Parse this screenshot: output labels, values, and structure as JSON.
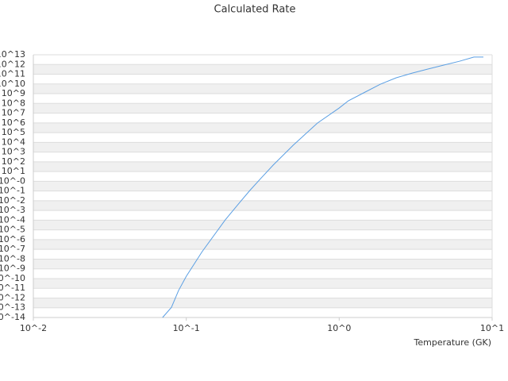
{
  "chart_data": {
    "type": "line",
    "title": "Calculated Rate",
    "x_label": "Temperature (GK)",
    "x_scale": "log",
    "y_scale": "log",
    "grid": true,
    "color": "#5b9fe3",
    "xlim": [
      0.01,
      10
    ],
    "xticks": [
      {
        "value": 0.01,
        "label": "10^-2"
      },
      {
        "value": 0.1,
        "label": "10^-1"
      },
      {
        "value": 1,
        "label": "10^0"
      },
      {
        "value": 10,
        "label": "10^1"
      }
    ],
    "ylim": [
      1e-14,
      10000000000000.0
    ],
    "yticks": [
      {
        "value": 10000000000000.0,
        "label": "10^13"
      },
      {
        "value": 1000000000000.0,
        "label": "10^12"
      },
      {
        "value": 100000000000.0,
        "label": "10^11"
      },
      {
        "value": 10000000000.0,
        "label": "10^10"
      },
      {
        "value": 1000000000.0,
        "label": "10^9"
      },
      {
        "value": 100000000.0,
        "label": "10^8"
      },
      {
        "value": 10000000.0,
        "label": "10^7"
      },
      {
        "value": 1000000.0,
        "label": "10^6"
      },
      {
        "value": 100000.0,
        "label": "10^5"
      },
      {
        "value": 10000.0,
        "label": "10^4"
      },
      {
        "value": 1000.0,
        "label": "10^3"
      },
      {
        "value": 100,
        "label": "10^2"
      },
      {
        "value": 10,
        "label": "10^1"
      },
      {
        "value": 1,
        "label": "10^-0"
      },
      {
        "value": 0.1,
        "label": "10^-1"
      },
      {
        "value": 0.01,
        "label": "10^-2"
      },
      {
        "value": 0.001,
        "label": "10^-3"
      },
      {
        "value": 0.0001,
        "label": "10^-4"
      },
      {
        "value": 1e-05,
        "label": "10^-5"
      },
      {
        "value": 1e-06,
        "label": "10^-6"
      },
      {
        "value": 1e-07,
        "label": "10^-7"
      },
      {
        "value": 1e-08,
        "label": "10^-8"
      },
      {
        "value": 1e-09,
        "label": "10^-9"
      },
      {
        "value": 1e-10,
        "label": "10^-10"
      },
      {
        "value": 1e-11,
        "label": "10^-11"
      },
      {
        "value": 1e-12,
        "label": "10^-12"
      },
      {
        "value": 1e-13,
        "label": "10^-13"
      },
      {
        "value": 1e-14,
        "label": "10^-14"
      }
    ],
    "x": [
      0.07,
      0.08,
      0.089,
      0.1,
      0.127,
      0.18,
      0.217,
      0.26,
      0.31,
      0.37,
      0.5,
      0.72,
      1,
      1.15,
      1.47,
      1.86,
      2.36,
      3.0,
      3.8,
      4.83,
      6.14,
      7.6,
      8.77
    ],
    "values": [
      1e-14,
      1.1e-13,
      5.9e-12,
      1.7e-10,
      5.9e-08,
      0.00011,
      0.0038,
      0.11,
      2.3,
      46,
      5000,
      950000.0,
      34000000.0,
      190000000.0,
      1400000000.0,
      9500000000.0,
      43000000000.0,
      130000000000.0,
      340000000000.0,
      870000000000.0,
      2200000000000.0,
      5800000000000.0,
      5800000000000.0
    ]
  }
}
